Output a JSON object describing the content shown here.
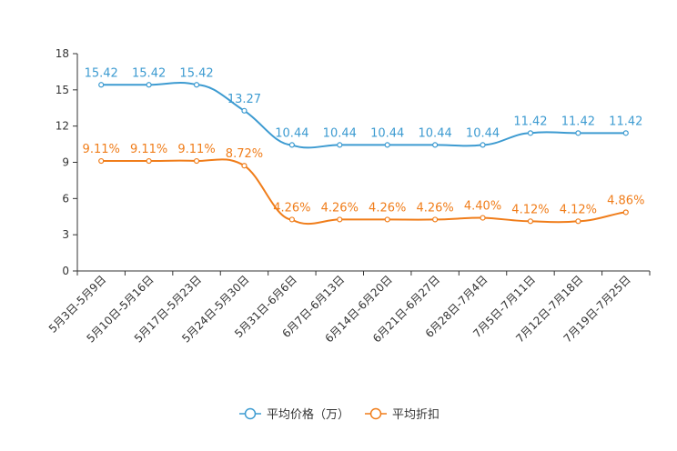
{
  "chart_data": {
    "type": "line",
    "title": "",
    "xlabel": "",
    "ylabel": "",
    "ylim": [
      0,
      18
    ],
    "yticks": [
      0,
      3,
      6,
      9,
      12,
      15,
      18
    ],
    "grid": false,
    "legend_position": "bottom-center",
    "categories": [
      "5月3日-5月9日",
      "5月10日-5月16日",
      "5月17日-5月23日",
      "5月24日-5月30日",
      "5月31日-6月6日",
      "6月7日-6月13日",
      "6月14日-6月20日",
      "6月21日-6月27日",
      "6月28日-7月4日",
      "7月5日-7月11日",
      "7月12日-7月18日",
      "7月19日-7月25日"
    ],
    "series": [
      {
        "name": "平均价格（万）",
        "color": "#3d9bd1",
        "values": [
          15.42,
          15.42,
          15.42,
          13.27,
          10.44,
          10.44,
          10.44,
          10.44,
          10.44,
          11.42,
          11.42,
          11.42
        ],
        "labels": [
          "15.42",
          "15.42",
          "15.42",
          "13.27",
          "10.44",
          "10.44",
          "10.44",
          "10.44",
          "10.44",
          "11.42",
          "11.42",
          "11.42"
        ]
      },
      {
        "name": "平均折扣",
        "color": "#f07d1a",
        "values": [
          9.11,
          9.11,
          9.11,
          8.72,
          4.26,
          4.26,
          4.26,
          4.26,
          4.4,
          4.12,
          4.12,
          4.86
        ],
        "labels": [
          "9.11%",
          "9.11%",
          "9.11%",
          "8.72%",
          "4.26%",
          "4.26%",
          "4.26%",
          "4.26%",
          "4.40%",
          "4.12%",
          "4.12%",
          "4.86%"
        ]
      }
    ]
  }
}
